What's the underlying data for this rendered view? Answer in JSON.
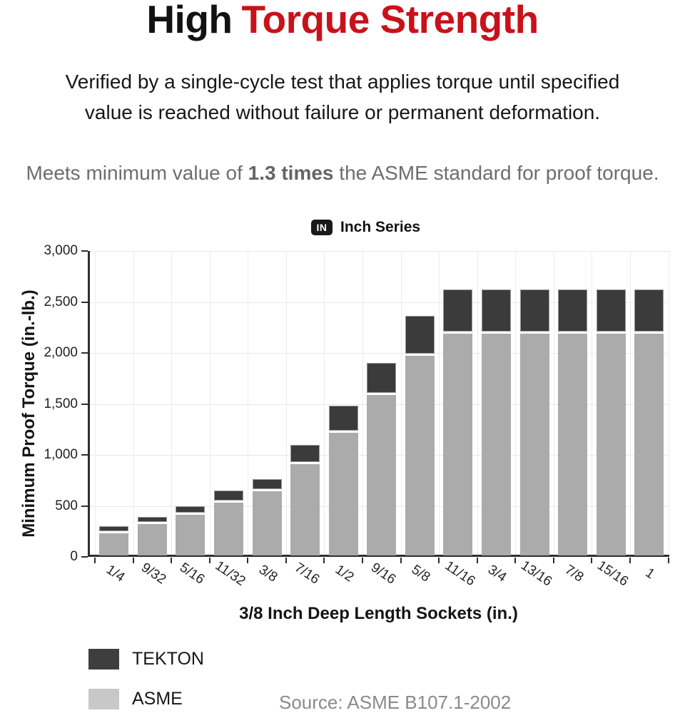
{
  "header": {
    "title_black": "High",
    "title_red": "Torque Strength",
    "subtitle_line1": "Verified by a single-cycle test that applies torque until specified",
    "subtitle_line2": "value is reached without failure or permanent deformation.",
    "meets_prefix": "Meets minimum value of ",
    "meets_bold": "1.3 times",
    "meets_suffix": " the ASME standard for proof torque."
  },
  "series_header": {
    "badge": "IN",
    "label": "Inch Series"
  },
  "chart_data": {
    "type": "bar",
    "stacked": true,
    "title": "Inch Series",
    "categories": [
      "1/4",
      "9/32",
      "5/16",
      "11/32",
      "3/8",
      "7/16",
      "1/2",
      "9/16",
      "5/8",
      "11/16",
      "3/4",
      "13/16",
      "7/8",
      "15/16",
      "1"
    ],
    "series": [
      {
        "name": "TEKTON",
        "color": "#3b3b3b",
        "role": "total_bar_top_proof_torque",
        "values": [
          300,
          390,
          500,
          650,
          760,
          1100,
          1480,
          1900,
          2365,
          2620,
          2620,
          2620,
          2620,
          2620,
          2620
        ]
      },
      {
        "name": "ASME",
        "color": "#ababab",
        "role": "asme_standard_proof_torque",
        "values": [
          230,
          320,
          410,
          530,
          640,
          910,
          1220,
          1590,
          1975,
          2190,
          2190,
          2190,
          2190,
          2190,
          2190
        ]
      }
    ],
    "xlabel": "3/8 Inch Deep Length Sockets (in.)",
    "ylabel": "Minimum Proof Torque (in.-lb.)",
    "ylim": [
      0,
      3000
    ],
    "ytick_step": 500,
    "grid": true,
    "legend_position": "bottom-left"
  },
  "legend": {
    "items": [
      {
        "label": "TEKTON",
        "color": "#3e3e3e"
      },
      {
        "label": "ASME",
        "color": "#c8c8c8"
      }
    ]
  },
  "source": "Source: ASME B107.1-2002",
  "colors": {
    "title_red": "#c8121a",
    "muted_text": "#6d6d6d",
    "source_text": "#8a8a8a",
    "bar_dark": "#3b3b3b",
    "bar_gray": "#ababab",
    "axis": "#2e2e2e"
  }
}
